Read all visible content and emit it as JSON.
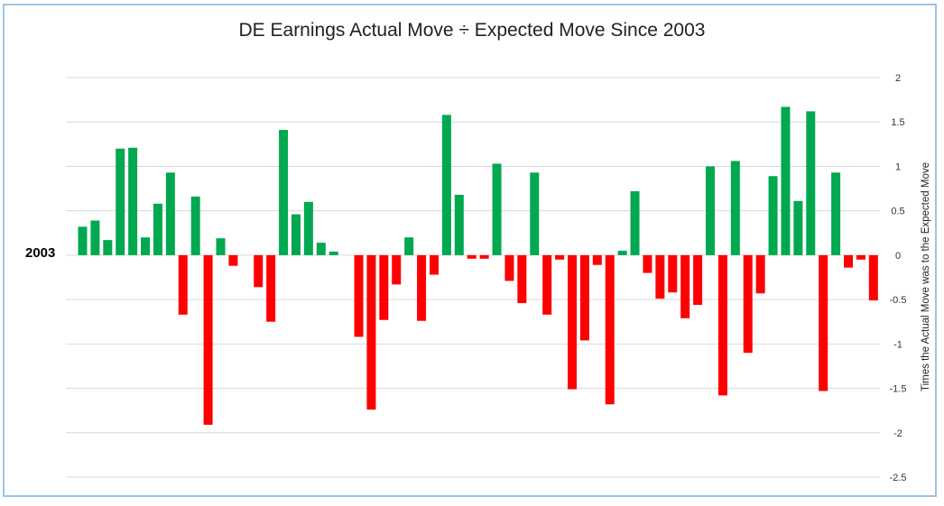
{
  "chart_data": {
    "type": "bar",
    "title": "DE Earnings Actual Move ÷ Expected Move Since 2003",
    "start_label": "2003",
    "ylabel": "Times the Actual Move was to the Expected Move",
    "ylim": [
      -2.5,
      2
    ],
    "yticks": [
      2,
      1.5,
      1,
      0.5,
      0,
      -0.5,
      -1,
      -1.5,
      -2,
      -2.5
    ],
    "ytick_labels": [
      "2",
      "1.5",
      "1",
      "0.5",
      "0",
      "-0.5",
      "-1",
      "-1.5",
      "-2",
      "-2.5"
    ],
    "grid": true,
    "y_axis_side": "right",
    "positive_color": "#00a84f",
    "negative_color": "#ff0000",
    "values": [
      0.32,
      0.39,
      0.17,
      1.2,
      1.21,
      0.2,
      0.58,
      0.93,
      -0.67,
      0.66,
      -1.91,
      0.19,
      -0.12,
      0,
      -0.36,
      -0.75,
      1.41,
      0.46,
      0.6,
      0.14,
      0.04,
      0,
      -0.92,
      -1.74,
      -0.73,
      -0.33,
      0.2,
      -0.74,
      -0.22,
      1.58,
      0.68,
      -0.04,
      -0.04,
      1.03,
      -0.29,
      -0.54,
      0.93,
      -0.67,
      -0.05,
      -1.51,
      -0.96,
      -0.11,
      -1.68,
      0.05,
      0.72,
      -0.2,
      -0.49,
      -0.42,
      -0.71,
      -0.56,
      1.0,
      -1.58,
      1.06,
      -1.1,
      -0.43,
      0.89,
      1.67,
      0.61,
      1.62,
      -1.53,
      0.93,
      -0.14,
      -0.05,
      -0.51
    ]
  }
}
